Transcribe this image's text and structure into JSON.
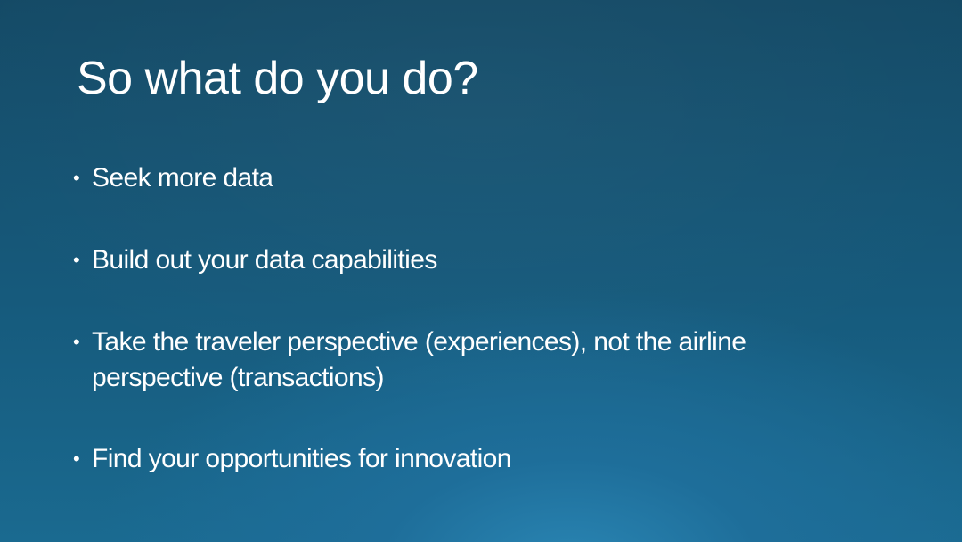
{
  "slide": {
    "title": "So what do you do?",
    "bullets": [
      "Seek more data",
      "Build out your data capabilities",
      "Take the traveler perspective (experiences), not the airline perspective (transactions)",
      "Find your opportunities for innovation"
    ],
    "bullet_glyph": "•"
  },
  "colors": {
    "background_top": "#144a66",
    "background_glow": "#2a86b4",
    "text": "#ffffff"
  }
}
